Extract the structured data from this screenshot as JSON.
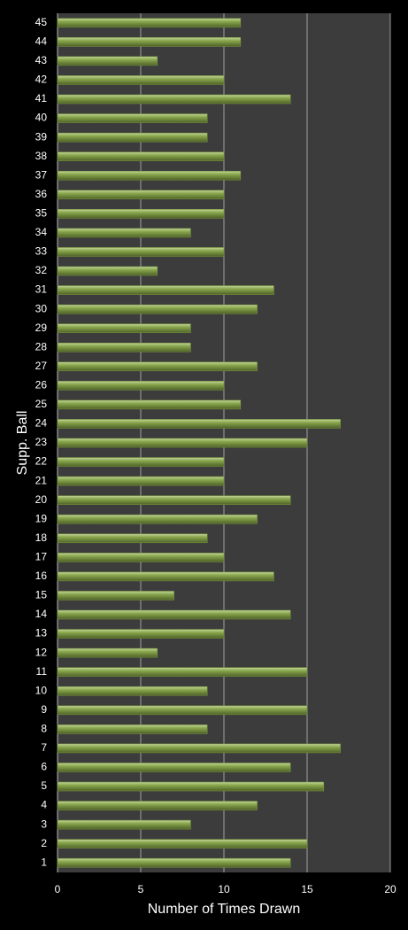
{
  "chart_data": {
    "type": "barh",
    "xlabel": "Number of Times Drawn",
    "ylabel": "Supp. Ball",
    "categories": [
      "1",
      "2",
      "3",
      "4",
      "5",
      "6",
      "7",
      "8",
      "9",
      "10",
      "11",
      "12",
      "13",
      "14",
      "15",
      "16",
      "17",
      "18",
      "19",
      "20",
      "21",
      "22",
      "23",
      "24",
      "25",
      "26",
      "27",
      "28",
      "29",
      "30",
      "31",
      "32",
      "33",
      "34",
      "35",
      "36",
      "37",
      "38",
      "39",
      "40",
      "41",
      "42",
      "43",
      "44",
      "45"
    ],
    "values": [
      14,
      15,
      8,
      12,
      16,
      14,
      17,
      9,
      15,
      9,
      15,
      6,
      10,
      14,
      7,
      13,
      10,
      9,
      12,
      14,
      10,
      10,
      15,
      17,
      11,
      10,
      12,
      8,
      8,
      12,
      13,
      6,
      10,
      8,
      10,
      10,
      11,
      10,
      9,
      9,
      14,
      10,
      6,
      11,
      11
    ],
    "color": "#76923c",
    "xlim": [
      0,
      20
    ],
    "xticks": [
      0,
      5,
      10,
      15,
      20
    ],
    "grid": true
  }
}
